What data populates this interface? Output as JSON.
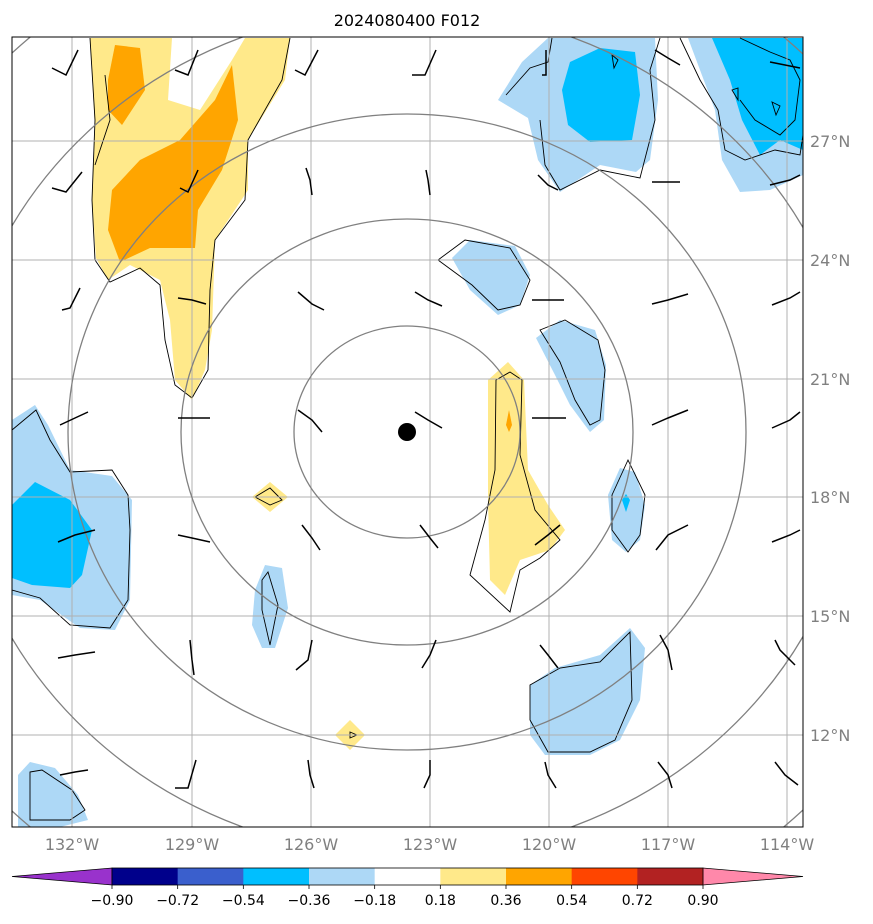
{
  "title": "2024080400 F012",
  "map": {
    "lon_range": [
      -133.3,
      -113.4
    ],
    "lat_range": [
      9.8,
      29.6
    ],
    "lon_ticks": [
      {
        "value": -132,
        "label": "132°W"
      },
      {
        "value": -129,
        "label": "129°W"
      },
      {
        "value": -126,
        "label": "126°W"
      },
      {
        "value": -123,
        "label": "123°W"
      },
      {
        "value": -120,
        "label": "120°W"
      },
      {
        "value": -117,
        "label": "117°W"
      },
      {
        "value": -114,
        "label": "114°W"
      }
    ],
    "lat_ticks": [
      {
        "value": 27,
        "label": "27°N"
      },
      {
        "value": 24,
        "label": "24°N"
      },
      {
        "value": 21,
        "label": "21°N"
      },
      {
        "value": 18,
        "label": "18°N"
      },
      {
        "value": 15,
        "label": "15°N"
      },
      {
        "value": 12,
        "label": "12°N"
      }
    ],
    "center": {
      "lon": -123.5,
      "lat": 19.6
    },
    "range_rings_deg": [
      3,
      6,
      9,
      12,
      15
    ],
    "grid": true
  },
  "colorbar": {
    "labels": [
      "−0.90",
      "−0.72",
      "−0.54",
      "−0.36",
      "−0.18",
      "0.18",
      "0.36",
      "0.54",
      "0.72",
      "0.90"
    ],
    "colors": [
      "#9932cc",
      "#00008b",
      "#3a5fcd",
      "#00bfff",
      "#add8f6",
      "#ffffff",
      "#ffe98a",
      "#ffa500",
      "#ff4500",
      "#b22222",
      "#ff88aa"
    ]
  },
  "colors": {
    "light_blue": "#add8f6",
    "deep_sky_blue": "#00bfff",
    "light_yellow": "#ffe98a",
    "orange": "#ffa500",
    "grid": "#b0b0b0",
    "rings": "#808080"
  }
}
